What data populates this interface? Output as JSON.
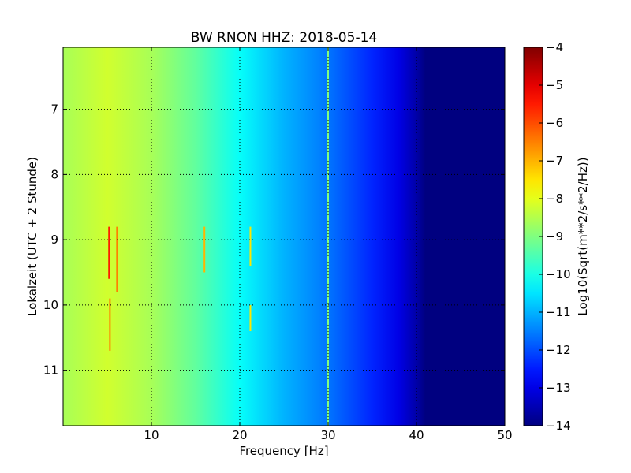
{
  "chart_data": {
    "type": "heatmap",
    "title": "BW RNON HHZ: 2018-05-14",
    "xlabel": "Frequency [Hz]",
    "ylabel": "Lokalzeit (UTC + 2 Stunde)",
    "xlim": [
      0,
      50
    ],
    "ylim": [
      6.05,
      11.85
    ],
    "y_inverted": true,
    "x_ticks": [
      10,
      20,
      30,
      40,
      50
    ],
    "y_ticks": [
      7,
      8,
      9,
      10,
      11
    ],
    "grid": true,
    "colormap": "jet",
    "colorbar": {
      "label": "Log10(Sqrt(m**2/s**2/Hz))",
      "range": [
        -14,
        -4
      ],
      "ticks": [
        -4,
        -5,
        -6,
        -7,
        -8,
        -9,
        -10,
        -11,
        -12,
        -13,
        -14
      ]
    },
    "frequency_profile": {
      "frequency_hz": [
        0,
        5,
        10,
        15,
        20,
        25,
        30,
        35,
        38,
        40,
        41,
        42,
        50
      ],
      "level": [
        -8.6,
        -8.2,
        -8.6,
        -9.3,
        -10.2,
        -11.0,
        -11.6,
        -12.4,
        -13.0,
        -13.6,
        -14.0,
        -14.0,
        -14.0
      ]
    },
    "spectral_lines": [
      {
        "frequency_hz": 5.2,
        "time_start": 8.8,
        "time_end": 9.6,
        "level": -5.5
      },
      {
        "frequency_hz": 6.1,
        "time_start": 8.8,
        "time_end": 9.8,
        "level": -6.5
      },
      {
        "frequency_hz": 5.3,
        "time_start": 9.9,
        "time_end": 10.7,
        "level": -6.5
      },
      {
        "frequency_hz": 16.0,
        "time_start": 8.8,
        "time_end": 9.5,
        "level": -7.0
      },
      {
        "frequency_hz": 21.2,
        "time_start": 8.8,
        "time_end": 9.4,
        "level": -7.5
      },
      {
        "frequency_hz": 21.2,
        "time_start": 10.0,
        "time_end": 10.4,
        "level": -7.5
      },
      {
        "frequency_hz": 30.0,
        "time_start": 6.05,
        "time_end": 11.85,
        "level": -9.0
      }
    ]
  }
}
